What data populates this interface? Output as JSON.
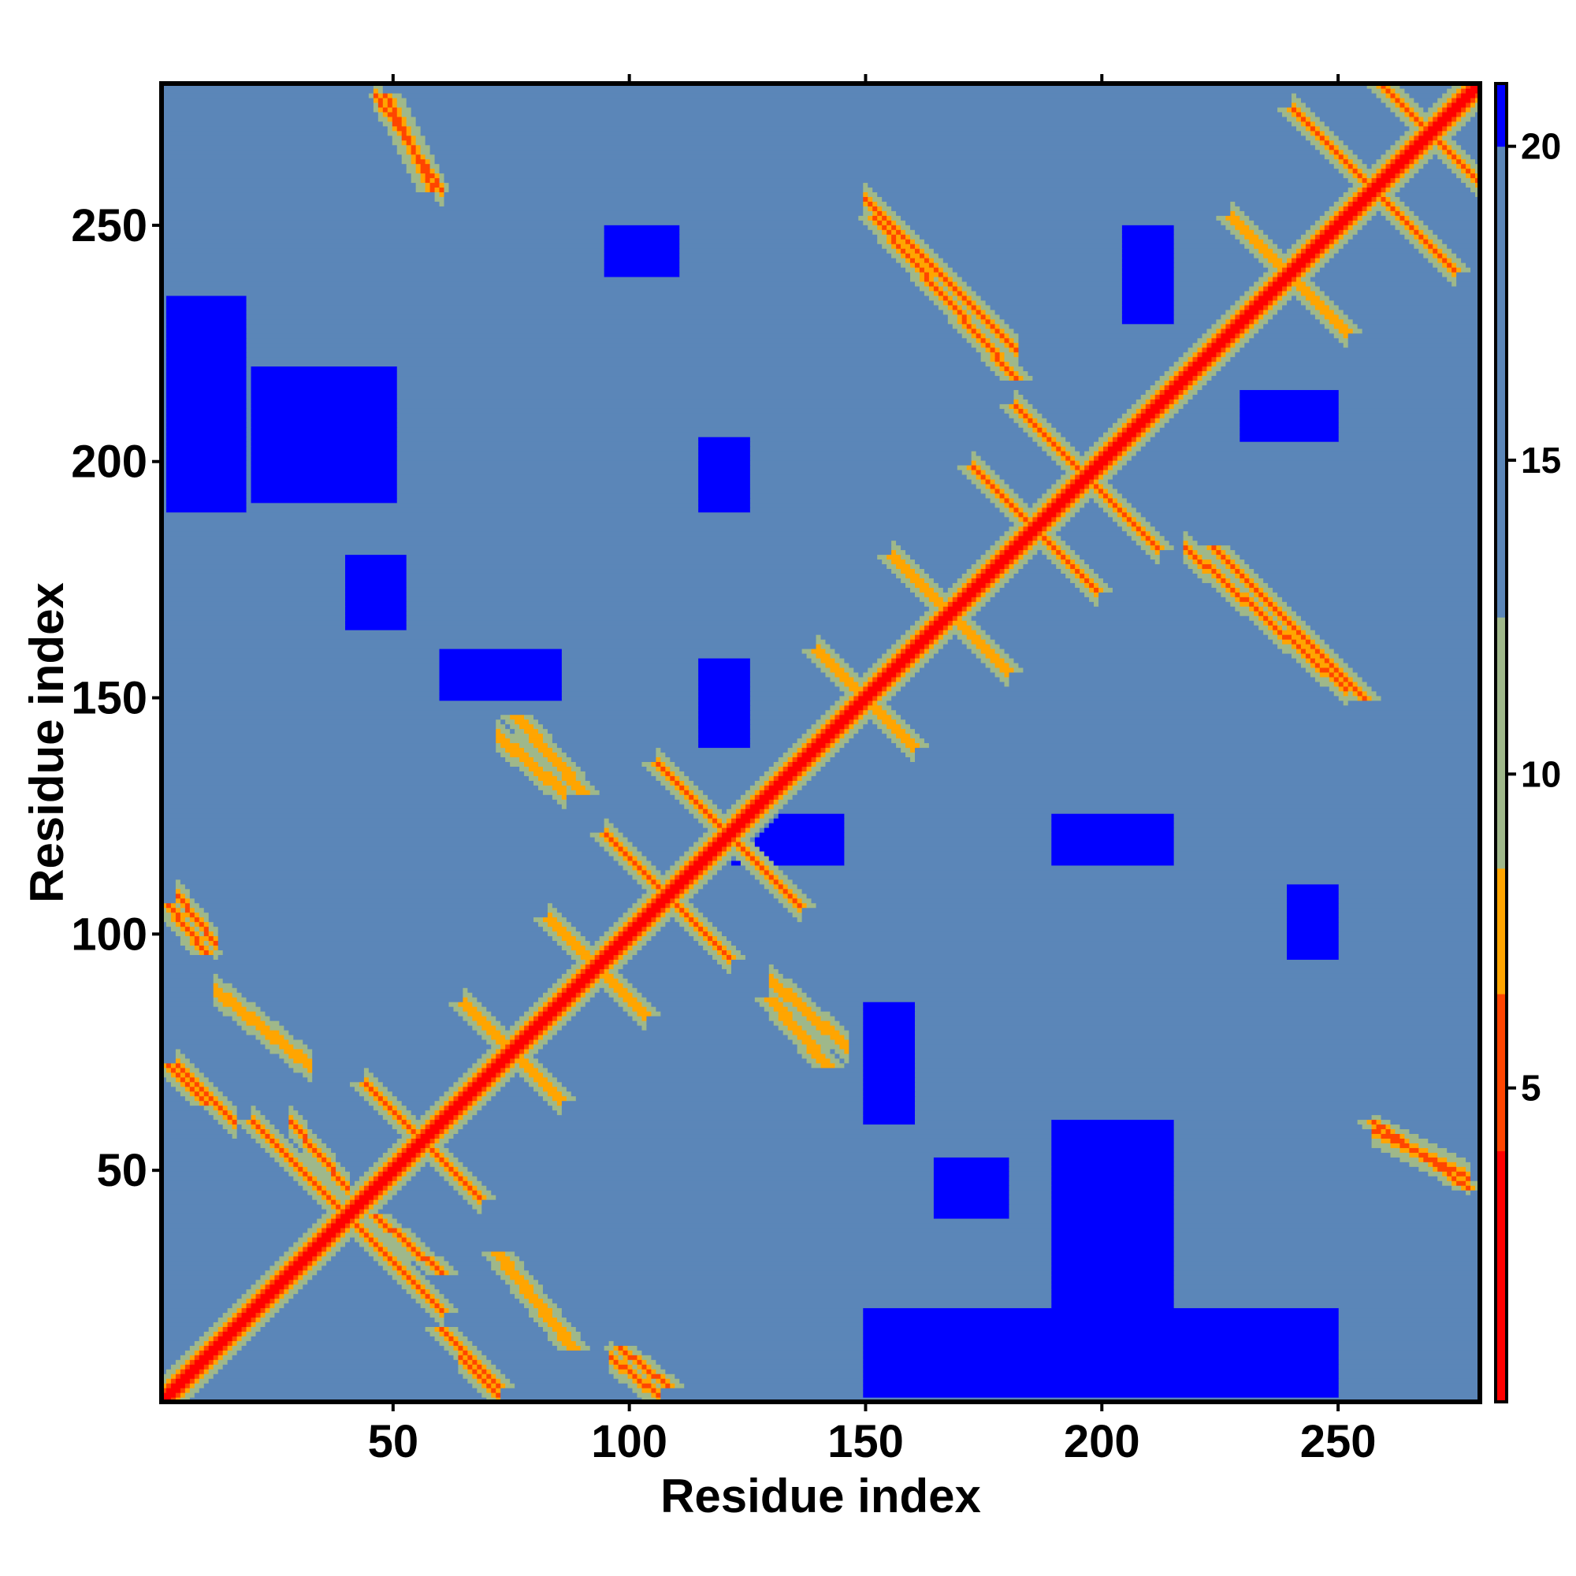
{
  "chart_data": {
    "type": "heatmap",
    "title": "",
    "xlabel": "Residue index",
    "ylabel": "Residue index",
    "n_residues": 280,
    "xlim": [
      1,
      280
    ],
    "ylim": [
      1,
      280
    ],
    "x_ticks": [
      50,
      100,
      150,
      200,
      250
    ],
    "y_ticks": [
      50,
      100,
      150,
      200,
      250
    ],
    "colorbar": {
      "ticks": [
        5,
        10,
        15,
        20
      ],
      "range": [
        0,
        21
      ],
      "colors": [
        {
          "from": 0,
          "to": 4,
          "color": "#ff0000"
        },
        {
          "from": 4,
          "to": 6.5,
          "color": "#ff4500"
        },
        {
          "from": 6.5,
          "to": 8.5,
          "color": "#ffa500"
        },
        {
          "from": 8.5,
          "to": 12.5,
          "color": "#9fb88a"
        },
        {
          "from": 12.5,
          "to": 20,
          "color": "#5b86b8"
        },
        {
          "from": 20,
          "to": 21,
          "color": "#0000ff"
        }
      ]
    },
    "contact_features": [
      {
        "kind": "diagonal",
        "range": [
          1,
          280
        ],
        "value": 3
      },
      {
        "kind": "antiparallel",
        "center": [
          121,
          121
        ],
        "length": 30,
        "value": 5
      },
      {
        "kind": "antiparallel",
        "center": [
          108,
          108
        ],
        "length": 26,
        "value": 5
      },
      {
        "kind": "antiparallel",
        "center": [
          197,
          197
        ],
        "length": 30,
        "value": 5
      },
      {
        "kind": "antiparallel",
        "center": [
          186,
          186
        ],
        "length": 26,
        "value": 5
      },
      {
        "kind": "antiparallel",
        "center": [
          258,
          258
        ],
        "length": 34,
        "value": 5
      },
      {
        "kind": "antiparallel",
        "center": [
          270,
          270
        ],
        "length": 26,
        "value": 5
      },
      {
        "kind": "antiparallel",
        "center": [
          40,
          40
        ],
        "length": 40,
        "value": 6
      },
      {
        "kind": "antiparallel",
        "center": [
          56,
          56
        ],
        "length": 24,
        "value": 6
      },
      {
        "kind": "antiparallel",
        "center": [
          75,
          75
        ],
        "length": 20,
        "value": 7
      },
      {
        "kind": "antiparallel",
        "center": [
          93,
          93
        ],
        "length": 20,
        "value": 7
      },
      {
        "kind": "antiparallel",
        "center": [
          150,
          150
        ],
        "length": 20,
        "value": 7
      },
      {
        "kind": "antiparallel",
        "center": [
          168,
          168
        ],
        "length": 24,
        "value": 7
      },
      {
        "kind": "antiparallel",
        "center": [
          240,
          240
        ],
        "length": 24,
        "value": 7
      },
      {
        "kind": "offdiag",
        "x": [
          2,
          10
        ],
        "y": [
          64,
          72
        ],
        "value": 6
      },
      {
        "kind": "offdiag",
        "x": [
          2,
          10
        ],
        "y": [
          96,
          106
        ],
        "value": 6
      },
      {
        "kind": "offdiag",
        "x": [
          46,
          60
        ],
        "y": [
          28,
          40
        ],
        "value": 6
      },
      {
        "kind": "offdiag",
        "x": [
          60,
          72
        ],
        "y": [
          4,
          16
        ],
        "value": 6
      },
      {
        "kind": "offdiag",
        "x": [
          98,
          108
        ],
        "y": [
          4,
          12
        ],
        "value": 6
      },
      {
        "kind": "offdiag",
        "x": [
          72,
          88
        ],
        "y": [
          12,
          32
        ],
        "value": 7
      },
      {
        "kind": "offdiag",
        "x": [
          48,
          58
        ],
        "y": [
          258,
          278
        ],
        "value": 6
      },
      {
        "kind": "offdiag",
        "x": [
          152,
          182
        ],
        "y": [
          218,
          252
        ],
        "value": 6
      },
      {
        "kind": "offdiag",
        "x": [
          224,
          256
        ],
        "y": [
          150,
          182
        ],
        "value": 6
      },
      {
        "kind": "offdiag",
        "x": [
          258,
          278
        ],
        "y": [
          46,
          60
        ],
        "value": 6
      },
      {
        "kind": "offdiag",
        "x": [
          130,
          142
        ],
        "y": [
          72,
          86
        ],
        "value": 7
      },
      {
        "kind": "offdiag",
        "x": [
          76,
          90
        ],
        "y": [
          130,
          146
        ],
        "value": 7
      }
    ],
    "far_regions": [
      {
        "x": [
          2,
          18
        ],
        "y": [
          190,
          235
        ],
        "value": 21
      },
      {
        "x": [
          20,
          50
        ],
        "y": [
          192,
          220
        ],
        "value": 21
      },
      {
        "x": [
          150,
          250
        ],
        "y": [
          2,
          20
        ],
        "value": 21
      },
      {
        "x": [
          190,
          215
        ],
        "y": [
          20,
          60
        ],
        "value": 21
      },
      {
        "x": [
          120,
          145
        ],
        "y": [
          115,
          125
        ],
        "value": 21
      },
      {
        "x": [
          190,
          215
        ],
        "y": [
          115,
          125
        ],
        "value": 21
      },
      {
        "x": [
          115,
          125
        ],
        "y": [
          140,
          158
        ],
        "value": 21
      },
      {
        "x": [
          115,
          125
        ],
        "y": [
          190,
          205
        ],
        "value": 21
      },
      {
        "x": [
          150,
          160
        ],
        "y": [
          60,
          85
        ],
        "value": 21
      },
      {
        "x": [
          60,
          85
        ],
        "y": [
          150,
          160
        ],
        "value": 21
      },
      {
        "x": [
          205,
          215
        ],
        "y": [
          230,
          250
        ],
        "value": 21
      },
      {
        "x": [
          230,
          250
        ],
        "y": [
          205,
          215
        ],
        "value": 21
      },
      {
        "x": [
          40,
          52
        ],
        "y": [
          165,
          180
        ],
        "value": 21
      },
      {
        "x": [
          165,
          180
        ],
        "y": [
          40,
          52
        ],
        "value": 21
      },
      {
        "x": [
          95,
          110
        ],
        "y": [
          240,
          250
        ],
        "value": 21
      },
      {
        "x": [
          240,
          250
        ],
        "y": [
          95,
          110
        ],
        "value": 21
      }
    ],
    "background_value": 18
  }
}
